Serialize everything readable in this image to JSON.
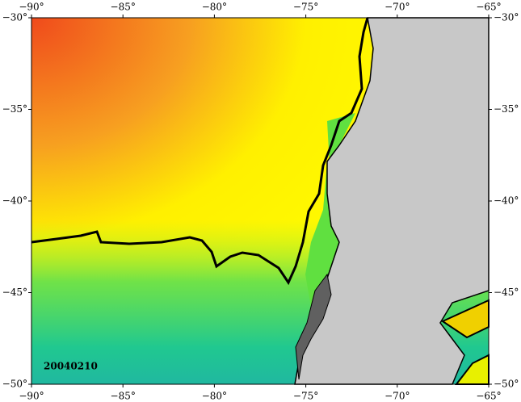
{
  "map": {
    "lon_ticks": [
      {
        "value": -90,
        "label": "−90°"
      },
      {
        "value": -85,
        "label": "−85°"
      },
      {
        "value": -80,
        "label": "−80°"
      },
      {
        "value": -75,
        "label": "−75°"
      },
      {
        "value": -70,
        "label": "−70°"
      },
      {
        "value": -65,
        "label": "−65°"
      }
    ],
    "lat_ticks": [
      {
        "value": -30,
        "label": "−30°"
      },
      {
        "value": -35,
        "label": "−35°"
      },
      {
        "value": -40,
        "label": "−40°"
      },
      {
        "value": -45,
        "label": "−45°"
      },
      {
        "value": -50,
        "label": "−50°"
      }
    ],
    "lonlim": [
      -90,
      -65
    ],
    "latlim": [
      -30,
      -50
    ],
    "date_label": "20040210"
  }
}
